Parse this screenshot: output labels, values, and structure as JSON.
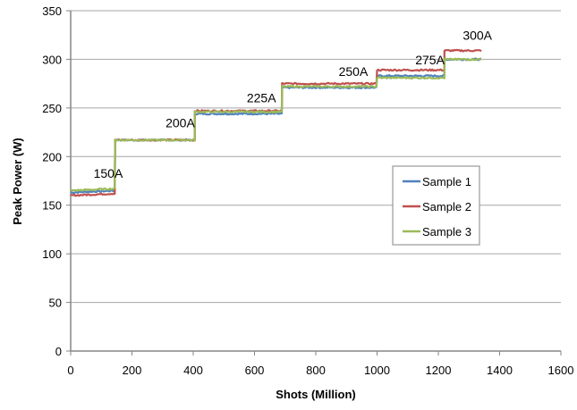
{
  "chart_data": {
    "type": "line",
    "title": "",
    "xlabel": "Shots (Million)",
    "ylabel": "Peak Power (W)",
    "xlim": [
      0,
      1600
    ],
    "ylim": [
      0,
      350
    ],
    "xticks": [
      0,
      200,
      400,
      600,
      800,
      1000,
      1200,
      1400,
      1600
    ],
    "yticks": [
      0,
      50,
      100,
      150,
      200,
      250,
      300,
      350
    ],
    "grid": "horizontal",
    "legend_position": "right",
    "annotations": [
      {
        "text": "150A",
        "x": 70,
        "y": 178
      },
      {
        "text": "200A",
        "x": 305,
        "y": 230
      },
      {
        "text": "225A",
        "x": 570,
        "y": 256
      },
      {
        "text": "250A",
        "x": 870,
        "y": 283
      },
      {
        "text": "275A",
        "x": 1120,
        "y": 295
      },
      {
        "text": "300A",
        "x": 1275,
        "y": 320
      }
    ],
    "segments_x": [
      [
        0,
        145
      ],
      [
        145,
        405
      ],
      [
        405,
        690
      ],
      [
        690,
        1000
      ],
      [
        1000,
        1220
      ],
      [
        1220,
        1340
      ]
    ],
    "series": [
      {
        "name": "Sample 1",
        "color": "#4f81bd",
        "levels": [
          164,
          217,
          244,
          271,
          283,
          300
        ]
      },
      {
        "name": "Sample 2",
        "color": "#c0504d",
        "levels": [
          161,
          217,
          247,
          275,
          289,
          309
        ]
      },
      {
        "name": "Sample 3",
        "color": "#9bbb59",
        "levels": [
          166,
          217,
          246,
          272,
          281,
          300
        ]
      }
    ]
  }
}
